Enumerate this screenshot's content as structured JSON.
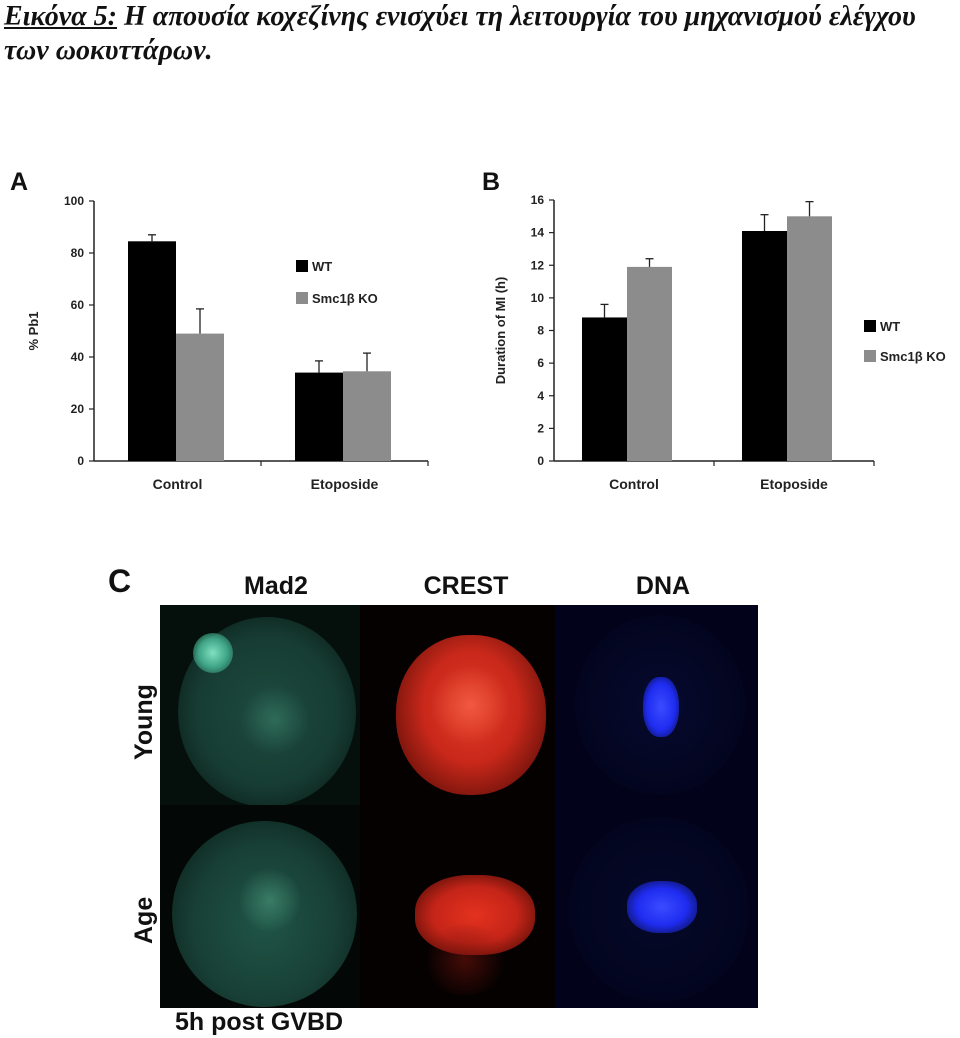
{
  "caption": {
    "label": "Εικόνα 5:",
    "text": " Η απουσία κοχεζίνης ενισχύει τη λειτουργία του μηχανισμού ελέγχου των ωοκυττάρων."
  },
  "panel_labels": {
    "a": "A",
    "b": "B",
    "c": "C"
  },
  "chart_data": [
    {
      "type": "bar",
      "panel": "A",
      "categories": [
        "Control",
        "Etoposide"
      ],
      "ylabel": "% Pb1",
      "ylim": [
        0,
        100
      ],
      "yticks": [
        0,
        20,
        40,
        60,
        80,
        100
      ],
      "legend_position": "right",
      "series": [
        {
          "name": "WT",
          "color": "#000000",
          "values": [
            84.5,
            34
          ],
          "errors": [
            2.5,
            4.5
          ]
        },
        {
          "name": "Smc1β KO",
          "color": "#8c8c8c",
          "values": [
            49,
            34.5
          ],
          "errors": [
            9.5,
            7
          ]
        }
      ]
    },
    {
      "type": "bar",
      "panel": "B",
      "categories": [
        "Control",
        "Etoposide"
      ],
      "ylabel": "Duration of MI (h)",
      "ylim": [
        0,
        16
      ],
      "yticks": [
        0,
        2,
        4,
        6,
        8,
        10,
        12,
        14,
        16
      ],
      "legend_position": "right",
      "series": [
        {
          "name": "WT",
          "color": "#000000",
          "values": [
            8.8,
            14.1
          ],
          "errors": [
            0.8,
            1.0
          ]
        },
        {
          "name": "Smc1β KO",
          "color": "#8c8c8c",
          "values": [
            11.9,
            15.0
          ],
          "errors": [
            0.5,
            0.9
          ]
        }
      ]
    }
  ],
  "micrographs": {
    "columns": [
      "Mad2",
      "CREST",
      "DNA"
    ],
    "rows": [
      "Young",
      "Age"
    ],
    "footer": "5h post GVBD",
    "colors": {
      "mad2": "#1f7a62",
      "crest": "#d42a1c",
      "dna": "#1a2cff"
    }
  }
}
